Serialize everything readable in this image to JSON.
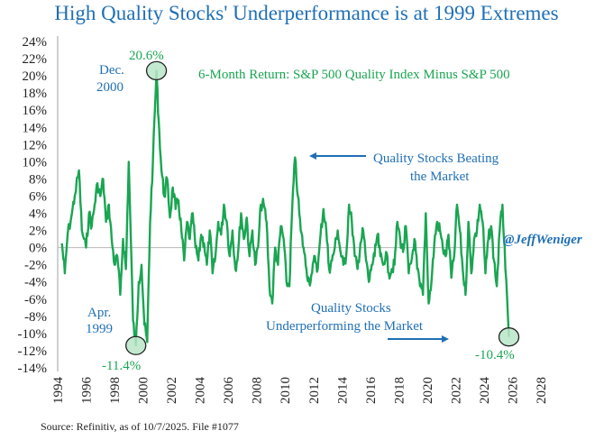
{
  "title": "High Quality Stocks' Underperformance is at 1999 Extremes",
  "source": "Source: Refinitiv, as of 10/7/2025. File #1077",
  "colors": {
    "series": "#1aa552",
    "accent": "#1f6fb5",
    "highlight_fill": "#b9e6c8"
  },
  "chart_data": {
    "type": "line",
    "title": "High Quality Stocks' Underperformance is at 1999 Extremes",
    "subtitle": "6-Month Return: S&P 500 Quality Index Minus S&P 500",
    "xlabel": "",
    "ylabel": "",
    "xlim": [
      1994,
      2028
    ],
    "ylim": [
      -14,
      24
    ],
    "grid": false,
    "zero_line": true,
    "xticks": [
      "1994",
      "1996",
      "1998",
      "2000",
      "2002",
      "2004",
      "2006",
      "2008",
      "2010",
      "2012",
      "2014",
      "2016",
      "2018",
      "2020",
      "2022",
      "2024",
      "2026",
      "2028"
    ],
    "yticks": [
      "24%",
      "22%",
      "20%",
      "18%",
      "16%",
      "14%",
      "12%",
      "10%",
      "8%",
      "6%",
      "4%",
      "2%",
      "0%",
      "-2%",
      "-4%",
      "-6%",
      "-8%",
      "-10%",
      "-12%",
      "-14%"
    ],
    "series": [
      {
        "name": "6-Month Return: S&P 500 Quality Index Minus S&P 500",
        "x": [
          1994.3,
          1994.5,
          1994.7,
          1995.0,
          1995.2,
          1995.5,
          1995.7,
          1996.0,
          1996.2,
          1996.4,
          1996.6,
          1996.8,
          1997.0,
          1997.2,
          1997.4,
          1997.6,
          1997.8,
          1998.0,
          1998.2,
          1998.4,
          1998.6,
          1998.8,
          1999.0,
          1999.3,
          1999.5,
          1999.7,
          1999.9,
          2000.1,
          2000.3,
          2000.5,
          2000.7,
          2000.95,
          2001.1,
          2001.3,
          2001.5,
          2001.7,
          2001.9,
          2002.1,
          2002.3,
          2002.5,
          2002.7,
          2002.9,
          2003.1,
          2003.3,
          2003.5,
          2003.7,
          2003.9,
          2004.1,
          2004.3,
          2004.5,
          2004.7,
          2004.9,
          2005.1,
          2005.3,
          2005.5,
          2005.7,
          2005.9,
          2006.1,
          2006.3,
          2006.5,
          2006.7,
          2006.9,
          2007.1,
          2007.3,
          2007.5,
          2007.7,
          2007.9,
          2008.1,
          2008.3,
          2008.5,
          2008.7,
          2008.9,
          2009.1,
          2009.3,
          2009.5,
          2009.7,
          2009.9,
          2010.1,
          2010.3,
          2010.5,
          2010.7,
          2010.9,
          2011.1,
          2011.3,
          2011.5,
          2011.7,
          2011.9,
          2012.1,
          2012.3,
          2012.5,
          2012.7,
          2012.9,
          2013.1,
          2013.3,
          2013.5,
          2013.7,
          2013.9,
          2014.1,
          2014.3,
          2014.5,
          2014.7,
          2014.9,
          2015.1,
          2015.3,
          2015.5,
          2015.7,
          2015.9,
          2016.1,
          2016.3,
          2016.5,
          2016.7,
          2016.9,
          2017.1,
          2017.3,
          2017.5,
          2017.7,
          2017.9,
          2018.1,
          2018.3,
          2018.5,
          2018.7,
          2018.9,
          2019.1,
          2019.3,
          2019.5,
          2019.7,
          2019.9,
          2020.1,
          2020.3,
          2020.5,
          2020.7,
          2020.9,
          2021.1,
          2021.3,
          2021.5,
          2021.7,
          2021.9,
          2022.1,
          2022.3,
          2022.5,
          2022.7,
          2022.9,
          2023.1,
          2023.3,
          2023.5,
          2023.7,
          2023.9,
          2024.1,
          2024.3,
          2024.5,
          2024.7,
          2024.9,
          2025.1,
          2025.3,
          2025.5,
          2025.75
        ],
        "y": [
          0.5,
          -3.0,
          1.5,
          4.0,
          6.0,
          9.0,
          2.0,
          0.0,
          4.0,
          2.5,
          5.0,
          7.5,
          6.0,
          8.0,
          3.0,
          5.0,
          1.0,
          -2.0,
          -1.0,
          -5.5,
          1.0,
          -2.5,
          10.0,
          -8.5,
          -11.4,
          -4.0,
          -2.0,
          -9.0,
          -11.0,
          3.0,
          10.0,
          20.6,
          15.0,
          9.0,
          6.0,
          8.0,
          3.5,
          7.0,
          4.5,
          5.5,
          2.0,
          -1.5,
          3.0,
          1.0,
          4.0,
          0.0,
          -1.5,
          1.5,
          0.5,
          -2.0,
          2.0,
          -3.0,
          -1.0,
          3.0,
          1.5,
          5.0,
          3.0,
          -1.0,
          2.0,
          -2.5,
          -0.5,
          4.0,
          1.0,
          3.5,
          -1.0,
          2.0,
          -2.0,
          0.0,
          5.0,
          5.0,
          3.0,
          -4.5,
          -6.5,
          0.0,
          -2.0,
          2.5,
          1.0,
          -4.0,
          -4.5,
          4.5,
          10.5,
          6.0,
          2.0,
          0.0,
          -2.5,
          -4.0,
          -3.0,
          -1.0,
          -2.5,
          1.5,
          4.5,
          2.0,
          -2.5,
          -1.5,
          0.0,
          2.0,
          -0.5,
          -2.0,
          -1.0,
          5.0,
          3.0,
          -1.0,
          -2.5,
          0.5,
          2.0,
          -1.5,
          -4.0,
          -2.0,
          -1.0,
          1.5,
          -1.0,
          -2.0,
          -0.5,
          -3.0,
          -2.5,
          -2.0,
          3.0,
          1.0,
          -0.5,
          2.5,
          -3.0,
          -1.5,
          1.0,
          -2.5,
          -4.5,
          -5.5,
          4.0,
          -6.5,
          -4.0,
          0.5,
          3.0,
          2.0,
          0.0,
          -1.0,
          1.5,
          -3.5,
          -1.0,
          5.0,
          2.0,
          -2.5,
          -5.5,
          3.0,
          -3.0,
          1.0,
          2.0,
          5.0,
          3.0,
          -3.0,
          1.0,
          2.5,
          -1.5,
          -4.5,
          2.0,
          5.0,
          -2.5,
          -10.4
        ]
      }
    ],
    "annotations": [
      {
        "label": "Dec.",
        "label2": "2000",
        "value_label": "20.6%",
        "x": 2000.95,
        "y": 20.6,
        "circled": true
      },
      {
        "label": "Apr.",
        "label2": "1999",
        "value_label": "-11.4%",
        "x": 1999.5,
        "y": -11.4,
        "circled": true
      },
      {
        "label": "",
        "label2": "",
        "value_label": "-10.4%",
        "x": 2025.75,
        "y": -10.4,
        "circled": true
      }
    ],
    "callouts": {
      "beating_line1": "Quality Stocks Beating",
      "beating_line2": "the Market",
      "under_line1": "Quality Stocks",
      "under_line2": "Underperforming the Market"
    },
    "watermark": "@JeffWeniger"
  }
}
